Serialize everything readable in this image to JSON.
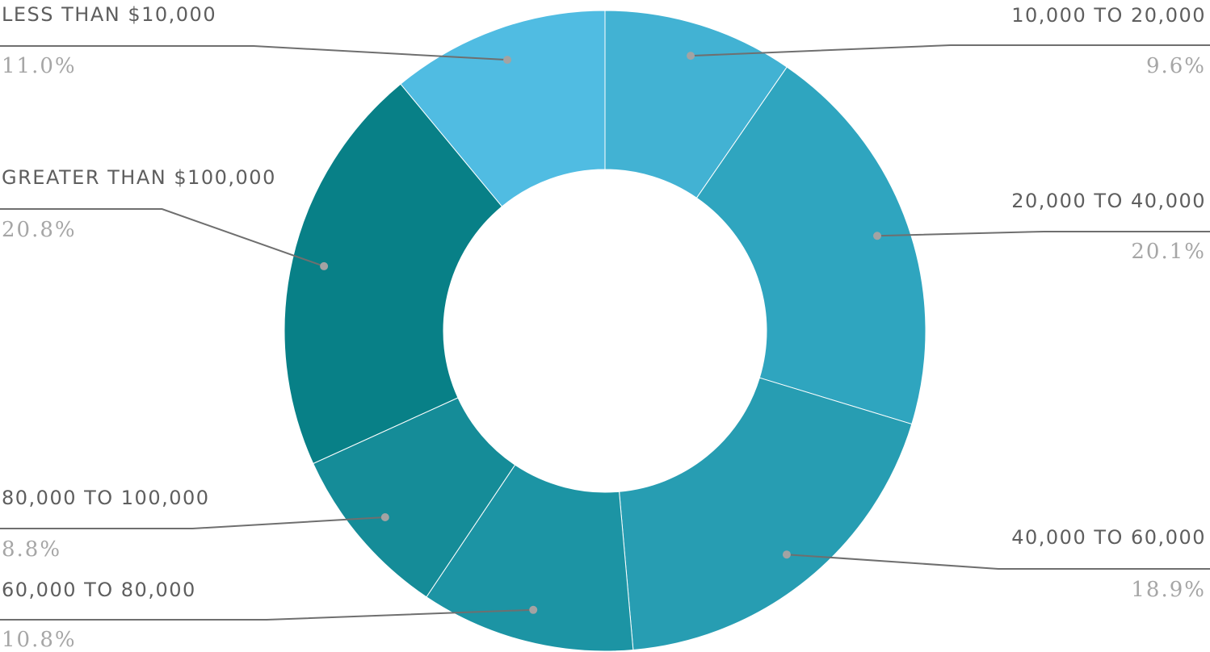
{
  "chart_data": {
    "type": "pie",
    "style": "donut",
    "categories": [
      "10,000 TO 20,000",
      "20,000 TO 40,000",
      "40,000 TO 60,000",
      "60,000 TO 80,000",
      "80,000 TO 100,000",
      "GREATER THAN $100,000",
      "LESS THAN $10,000"
    ],
    "values": [
      9.6,
      20.1,
      18.9,
      10.8,
      8.8,
      20.8,
      11.0
    ],
    "value_labels": [
      "9.6%",
      "20.1%",
      "18.9%",
      "10.8%",
      "8.8%",
      "20.8%",
      "11.0%"
    ],
    "colors": [
      "#42b2d3",
      "#2fa5bf",
      "#279db2",
      "#1c94a4",
      "#158c98",
      "#088087",
      "#50bce2"
    ],
    "legend": "none",
    "title": ""
  }
}
